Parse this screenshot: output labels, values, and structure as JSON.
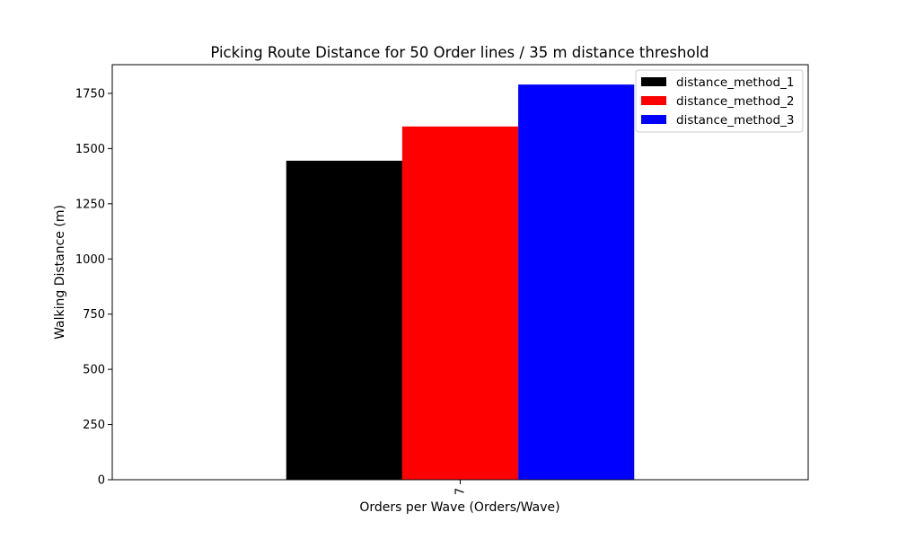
{
  "chart_data": {
    "type": "bar",
    "title": "Picking Route Distance for 50 Order lines / 35 m distance threshold",
    "xlabel": "Orders per Wave (Orders/Wave)",
    "ylabel": "Walking Distance (m)",
    "categories": [
      "7"
    ],
    "series": [
      {
        "name": "distance_method_1",
        "values": [
          1445
        ],
        "color": "#000000"
      },
      {
        "name": "distance_method_2",
        "values": [
          1600
        ],
        "color": "#ff0000"
      },
      {
        "name": "distance_method_3",
        "values": [
          1790
        ],
        "color": "#0000ff"
      }
    ],
    "ylim": [
      0,
      1880
    ],
    "yticks": [
      0,
      250,
      500,
      750,
      1000,
      1250,
      1500,
      1750
    ],
    "grid": false,
    "legend": "top-right"
  }
}
